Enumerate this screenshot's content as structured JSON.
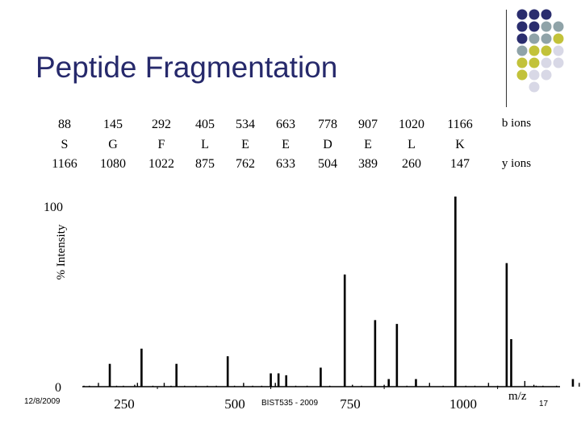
{
  "slide": {
    "title": "Peptide Fragmentation",
    "date": "12/8/2009",
    "course": "BIST535 - 2009",
    "page": "17"
  },
  "fragments": [
    {
      "b": "88",
      "residue": "S",
      "y": "1166"
    },
    {
      "b": "145",
      "residue": "G",
      "y": "1080"
    },
    {
      "b": "292",
      "residue": "F",
      "y": "1022"
    },
    {
      "b": "405",
      "residue": "L",
      "y": "875"
    },
    {
      "b": "534",
      "residue": "E",
      "y": "762"
    },
    {
      "b": "663",
      "residue": "E",
      "y": "633"
    },
    {
      "b": "778",
      "residue": "D",
      "y": "504"
    },
    {
      "b": "907",
      "residue": "E",
      "y": "389"
    },
    {
      "b": "1020",
      "residue": "L",
      "y": "260"
    },
    {
      "b": "1166",
      "residue": "K",
      "y": "147"
    }
  ],
  "ion_labels": {
    "b": "b ions",
    "y": "y ions"
  },
  "colors": {
    "title": "#26296b",
    "dot_navy": "#2a2d6e",
    "dot_gray": "#8fa3a8",
    "dot_olive": "#c2c23a",
    "dot_lavender": "#d8d8e6"
  },
  "chart_data": {
    "type": "bar",
    "title": "",
    "xlabel": "m/z",
    "ylabel": "% Intensity",
    "xlim": [
      88,
      1195
    ],
    "ylim": [
      0,
      100
    ],
    "x_ticks": [
      "250",
      "500",
      "750",
      "1000"
    ],
    "y_ticks": [
      "0",
      "100"
    ],
    "grid": false,
    "series": [
      {
        "x": [
          88,
          100,
          120,
          145,
          160,
          175,
          200,
          206,
          215,
          240,
          265,
          280,
          292,
          310,
          335,
          360,
          380,
          405,
          420,
          440,
          460,
          480,
          500,
          510,
          517,
          534,
          555,
          580,
          610,
          630,
          663,
          680,
          700,
          730,
          750,
          760,
          778,
          800,
          820,
          850,
          880,
          907,
          930,
          950,
          980,
          1000,
          1020,
          1030,
          1060,
          1080,
          1085,
          1100,
          1130,
          1166,
          1180
        ],
        "values": [
          0.5,
          0.5,
          2,
          12,
          0.5,
          0.5,
          1,
          2,
          20,
          0.5,
          2,
          0.5,
          12,
          0.5,
          0.5,
          0.5,
          0.5,
          16,
          0.5,
          2,
          0.5,
          0.5,
          7,
          2,
          7,
          6,
          0.5,
          0.5,
          10,
          0.5,
          59,
          1,
          0.5,
          35,
          1,
          4,
          33,
          0.5,
          4,
          2,
          0.5,
          100,
          0.5,
          0.5,
          2,
          0.5,
          65,
          25,
          3,
          1,
          0.5,
          0.5,
          0.5,
          4,
          2
        ]
      }
    ]
  }
}
